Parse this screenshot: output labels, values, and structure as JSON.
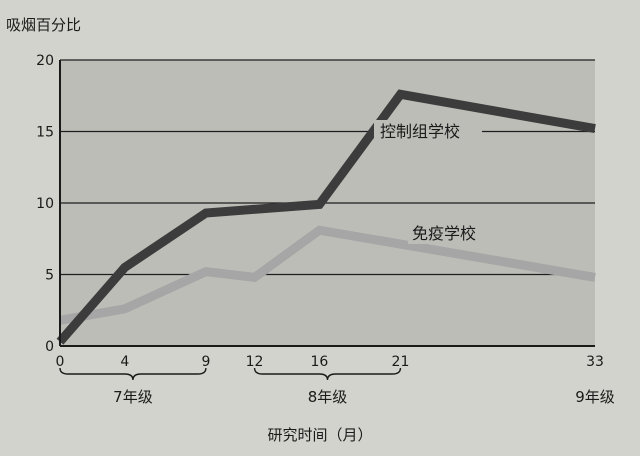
{
  "chart_data": {
    "type": "line",
    "ylabel": "吸烟百分比",
    "xlabel": "研究时间（月）",
    "ylim": [
      0,
      20
    ],
    "xlim": [
      0,
      33
    ],
    "yticks": [
      0,
      5,
      10,
      15,
      20
    ],
    "xticks": [
      0,
      4,
      9,
      12,
      16,
      21,
      33
    ],
    "grid": "horizontal",
    "series": [
      {
        "name": "控制组学校",
        "color": "#3c3c3c",
        "x": [
          0,
          4,
          9,
          16,
          21,
          33
        ],
        "values": [
          0.3,
          5.5,
          9.3,
          9.9,
          17.6,
          15.2
        ]
      },
      {
        "name": "免疫学校",
        "color": "#a6a6a6",
        "x": [
          0,
          4,
          9,
          12,
          16,
          33
        ],
        "values": [
          1.8,
          2.6,
          5.2,
          4.8,
          8.1,
          4.8
        ]
      }
    ],
    "grade_groups": [
      {
        "label": "7年级",
        "from": 0,
        "to": 9
      },
      {
        "label": "8年级",
        "from": 12,
        "to": 21
      },
      {
        "label": "9年级",
        "from": 33,
        "to": 33
      }
    ]
  }
}
